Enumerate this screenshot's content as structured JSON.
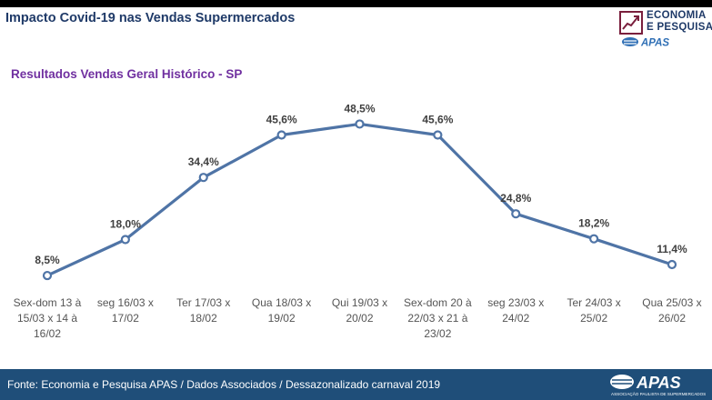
{
  "header": {
    "title": "Impacto Covid-19 nas Vendas Supermercados",
    "logo_line1": "ECONOMIA",
    "logo_line2": "E PESQUISA",
    "logo_brand": "APAS"
  },
  "footer": {
    "source": "Fonte: Economia e Pesquisa APAS / Dados Associados / Dessazonalizado carnaval 2019",
    "brand": "APAS",
    "brand_tagline": "ASSOCIAÇÃO PAULISTA DE SUPERMERCADOS"
  },
  "colors": {
    "line": "#4f74a6",
    "title": "#1f3a68",
    "subtitle": "#7030a0",
    "footer_bg": "#1f4e79"
  },
  "chart_data": {
    "type": "line",
    "title": "Resultados Vendas Geral Histórico - SP",
    "categories": [
      [
        "Sex-dom 13 à",
        "15/03  x 14 à",
        "16/02"
      ],
      [
        "seg 16/03 x",
        "17/02"
      ],
      [
        "Ter 17/03 x",
        "18/02"
      ],
      [
        "Qua 18/03 x",
        "19/02"
      ],
      [
        "Qui 19/03 x",
        "20/02"
      ],
      [
        "Sex-dom 20 à",
        "22/03  x 21 à",
        "23/02"
      ],
      [
        "seg 23/03 x",
        "24/02"
      ],
      [
        "Ter 24/03 x",
        "25/02"
      ],
      [
        "Qua 25/03 x",
        "26/02"
      ]
    ],
    "values": [
      8.5,
      18.0,
      34.4,
      45.6,
      48.5,
      45.6,
      24.8,
      18.2,
      11.4
    ],
    "labels": [
      "8,5%",
      "18,0%",
      "34,4%",
      "45,6%",
      "48,5%",
      "45,6%",
      "24,8%",
      "18,2%",
      "11,4%"
    ],
    "ylim": [
      0,
      60
    ],
    "grid": false,
    "legend": "none"
  }
}
